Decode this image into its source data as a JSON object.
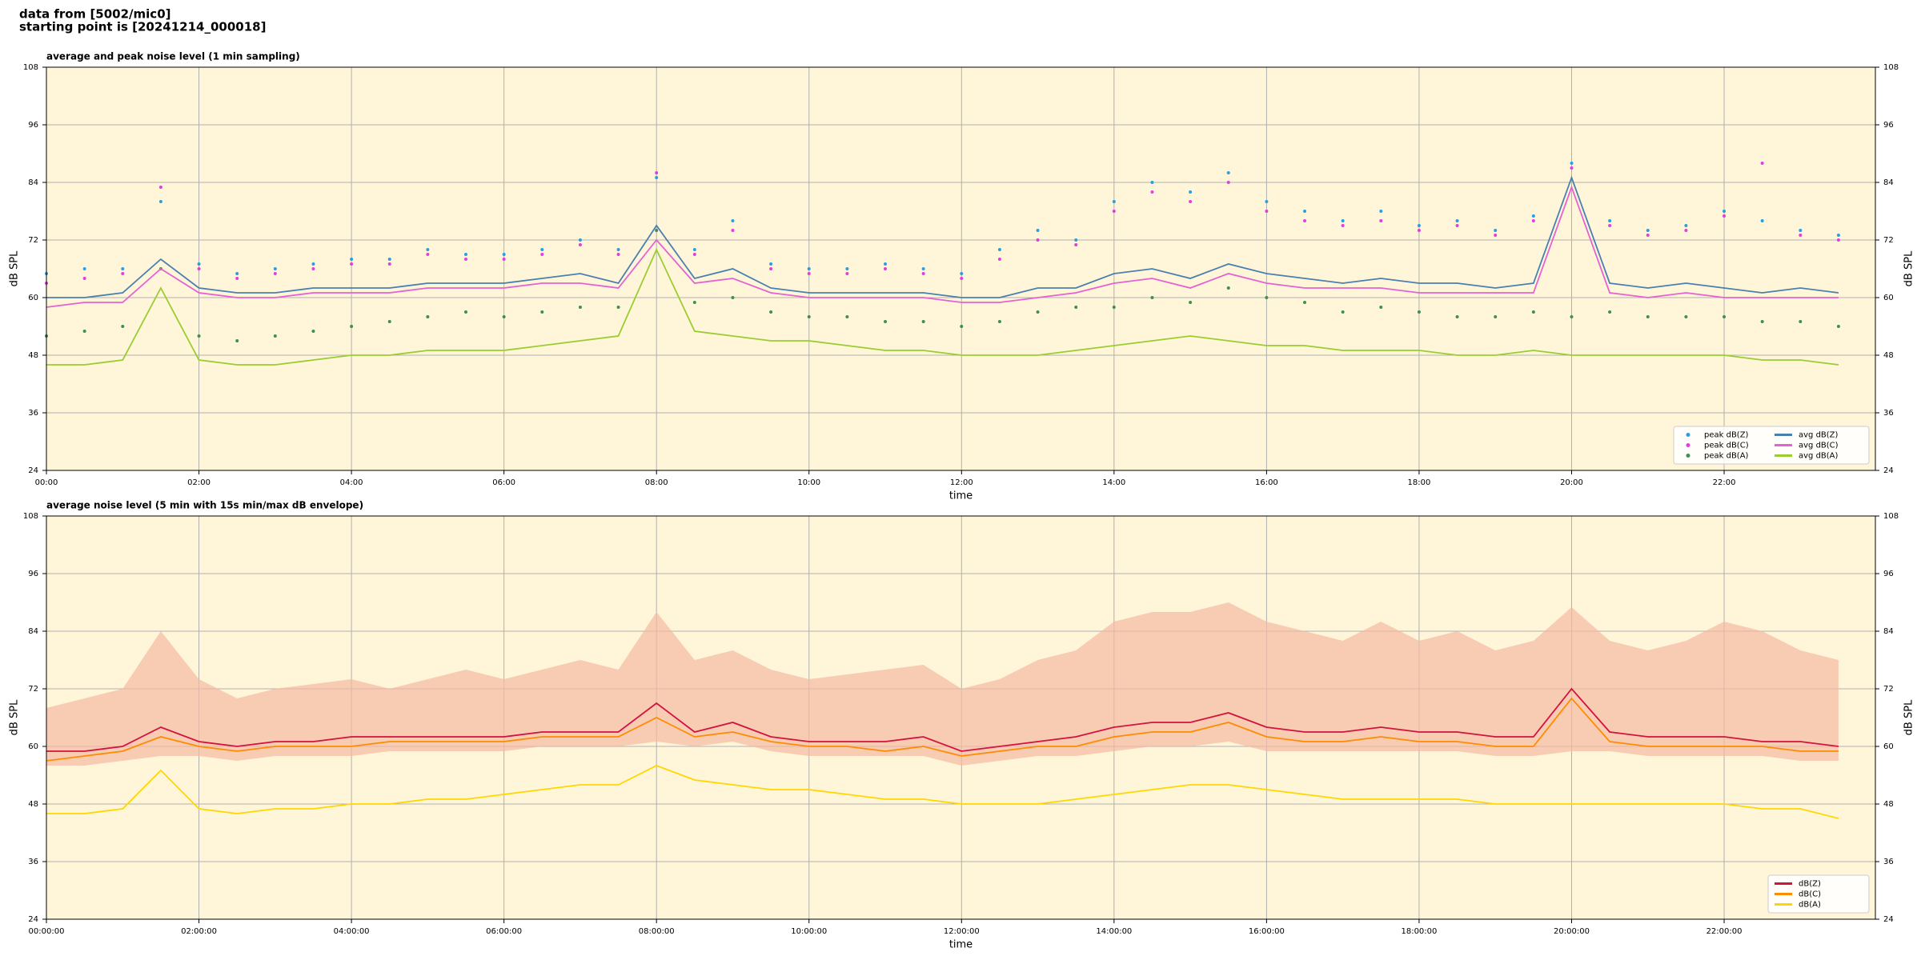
{
  "page_title": [
    "data from [5002/mic0]",
    "starting point is [20241214_000018]"
  ],
  "chart_data": [
    {
      "type": "line",
      "title": "average and peak noise level (1 min sampling)",
      "xlabel": "time",
      "ylabel": "dB SPL",
      "x": [
        "00:00",
        "00:30",
        "01:00",
        "01:30",
        "02:00",
        "02:30",
        "03:00",
        "03:30",
        "04:00",
        "04:30",
        "05:00",
        "05:30",
        "06:00",
        "06:30",
        "07:00",
        "07:30",
        "08:00",
        "08:30",
        "09:00",
        "09:30",
        "10:00",
        "10:30",
        "11:00",
        "11:30",
        "12:00",
        "12:30",
        "13:00",
        "13:30",
        "14:00",
        "14:30",
        "15:00",
        "15:30",
        "16:00",
        "16:30",
        "17:00",
        "17:30",
        "18:00",
        "18:30",
        "19:00",
        "19:30",
        "20:00",
        "20:30",
        "21:00",
        "21:30",
        "22:00",
        "22:30",
        "23:00",
        "23:30"
      ],
      "xlim": [
        "00:00",
        "23:59"
      ],
      "xticks": [
        "00:00",
        "02:00",
        "04:00",
        "06:00",
        "08:00",
        "10:00",
        "12:00",
        "14:00",
        "16:00",
        "18:00",
        "20:00",
        "22:00"
      ],
      "ylim": [
        24,
        108
      ],
      "yticks": [
        24,
        36,
        48,
        60,
        72,
        84,
        96,
        108
      ],
      "grid": true,
      "legend": "lower right",
      "legend_columns": 2,
      "background": "#fff6d9",
      "series": [
        {
          "name": "peak dB(Z)",
          "kind": "scatter",
          "color": "#2a9fe0",
          "values": [
            65,
            66,
            66,
            80,
            67,
            65,
            66,
            67,
            68,
            68,
            70,
            69,
            69,
            70,
            72,
            70,
            85,
            70,
            76,
            67,
            66,
            66,
            67,
            66,
            65,
            70,
            74,
            72,
            80,
            84,
            82,
            86,
            80,
            78,
            76,
            78,
            75,
            76,
            74,
            77,
            88,
            76,
            74,
            75,
            78,
            76,
            74,
            73
          ]
        },
        {
          "name": "peak dB(C)",
          "kind": "scatter",
          "color": "#e03ee0",
          "values": [
            63,
            64,
            65,
            83,
            66,
            64,
            65,
            66,
            67,
            67,
            69,
            68,
            68,
            69,
            71,
            69,
            86,
            69,
            74,
            66,
            65,
            65,
            66,
            65,
            64,
            68,
            72,
            71,
            78,
            82,
            80,
            84,
            78,
            76,
            75,
            76,
            74,
            75,
            73,
            76,
            87,
            75,
            73,
            74,
            77,
            88,
            73,
            72
          ]
        },
        {
          "name": "peak dB(A)",
          "kind": "scatter",
          "color": "#3f8f50",
          "values": [
            52,
            53,
            54,
            66,
            52,
            51,
            52,
            53,
            54,
            55,
            56,
            57,
            56,
            57,
            58,
            58,
            74,
            59,
            60,
            57,
            56,
            56,
            55,
            55,
            54,
            55,
            57,
            58,
            58,
            60,
            59,
            62,
            60,
            59,
            57,
            58,
            57,
            56,
            56,
            57,
            56,
            57,
            56,
            56,
            56,
            55,
            55,
            54
          ]
        },
        {
          "name": "avg dB(Z)",
          "kind": "line",
          "color": "#4a7fb0",
          "values": [
            60,
            60,
            61,
            68,
            62,
            61,
            61,
            62,
            62,
            62,
            63,
            63,
            63,
            64,
            65,
            63,
            75,
            64,
            66,
            62,
            61,
            61,
            61,
            61,
            60,
            60,
            62,
            62,
            65,
            66,
            64,
            67,
            65,
            64,
            63,
            64,
            63,
            63,
            62,
            63,
            85,
            63,
            62,
            63,
            62,
            61,
            62,
            61
          ]
        },
        {
          "name": "avg dB(C)",
          "kind": "line",
          "color": "#e462d2",
          "values": [
            58,
            59,
            59,
            66,
            61,
            60,
            60,
            61,
            61,
            61,
            62,
            62,
            62,
            63,
            63,
            62,
            72,
            63,
            64,
            61,
            60,
            60,
            60,
            60,
            59,
            59,
            60,
            61,
            63,
            64,
            62,
            65,
            63,
            62,
            62,
            62,
            61,
            61,
            61,
            61,
            83,
            61,
            60,
            61,
            60,
            60,
            60,
            60
          ]
        },
        {
          "name": "avg dB(A)",
          "kind": "line",
          "color": "#9acd32",
          "values": [
            46,
            46,
            47,
            62,
            47,
            46,
            46,
            47,
            48,
            48,
            49,
            49,
            49,
            50,
            51,
            52,
            70,
            53,
            52,
            51,
            51,
            50,
            49,
            49,
            48,
            48,
            48,
            49,
            50,
            51,
            52,
            51,
            50,
            50,
            49,
            49,
            49,
            48,
            48,
            49,
            48,
            48,
            48,
            48,
            48,
            47,
            47,
            46
          ]
        }
      ]
    },
    {
      "type": "line",
      "title": "average noise level (5 min with 15s min/max dB envelope)",
      "xlabel": "time",
      "ylabel": "dB SPL",
      "x": [
        "00:00",
        "00:30",
        "01:00",
        "01:30",
        "02:00",
        "02:30",
        "03:00",
        "03:30",
        "04:00",
        "04:30",
        "05:00",
        "05:30",
        "06:00",
        "06:30",
        "07:00",
        "07:30",
        "08:00",
        "08:30",
        "09:00",
        "09:30",
        "10:00",
        "10:30",
        "11:00",
        "11:30",
        "12:00",
        "12:30",
        "13:00",
        "13:30",
        "14:00",
        "14:30",
        "15:00",
        "15:30",
        "16:00",
        "16:30",
        "17:00",
        "17:30",
        "18:00",
        "18:30",
        "19:00",
        "19:30",
        "20:00",
        "20:30",
        "21:00",
        "21:30",
        "22:00",
        "22:30",
        "23:00",
        "23:30"
      ],
      "xlim": [
        "00:00",
        "23:59"
      ],
      "xticks": [
        {
          "value": "00:00",
          "label": "00:00:00"
        },
        {
          "value": "02:00",
          "label": "02:00:00"
        },
        {
          "value": "04:00",
          "label": "04:00:00"
        },
        {
          "value": "06:00",
          "label": "06:00:00"
        },
        {
          "value": "08:00",
          "label": "08:00:00"
        },
        {
          "value": "10:00",
          "label": "10:00:00"
        },
        {
          "value": "12:00",
          "label": "12:00:00"
        },
        {
          "value": "14:00",
          "label": "14:00:00"
        },
        {
          "value": "16:00",
          "label": "16:00:00"
        },
        {
          "value": "18:00",
          "label": "18:00:00"
        },
        {
          "value": "20:00",
          "label": "20:00:00"
        },
        {
          "value": "22:00",
          "label": "22:00:00"
        }
      ],
      "ylim": [
        24,
        108
      ],
      "yticks": [
        24,
        36,
        48,
        60,
        72,
        84,
        96,
        108
      ],
      "grid": true,
      "legend": "lower right",
      "legend_columns": 1,
      "background": "#fff6d9",
      "envelope": {
        "color": "#f5b9a2",
        "lower": [
          56,
          56,
          57,
          58,
          58,
          57,
          58,
          58,
          58,
          59,
          59,
          59,
          59,
          60,
          60,
          60,
          61,
          60,
          61,
          59,
          58,
          58,
          58,
          58,
          56,
          57,
          58,
          58,
          59,
          60,
          60,
          61,
          59,
          59,
          59,
          59,
          59,
          59,
          58,
          58,
          59,
          59,
          58,
          58,
          58,
          58,
          57,
          57
        ],
        "upper": [
          68,
          70,
          72,
          84,
          74,
          70,
          72,
          73,
          74,
          72,
          74,
          76,
          74,
          76,
          78,
          76,
          88,
          78,
          80,
          76,
          74,
          75,
          76,
          77,
          72,
          74,
          78,
          80,
          86,
          88,
          88,
          90,
          86,
          84,
          82,
          86,
          82,
          84,
          80,
          82,
          89,
          82,
          80,
          82,
          86,
          84,
          80,
          78
        ]
      },
      "series": [
        {
          "name": "dB(Z)",
          "kind": "line",
          "color": "#d3123e",
          "values": [
            59,
            59,
            60,
            64,
            61,
            60,
            61,
            61,
            62,
            62,
            62,
            62,
            62,
            63,
            63,
            63,
            69,
            63,
            65,
            62,
            61,
            61,
            61,
            62,
            59,
            60,
            61,
            62,
            64,
            65,
            65,
            67,
            64,
            63,
            63,
            64,
            63,
            63,
            62,
            62,
            72,
            63,
            62,
            62,
            62,
            61,
            61,
            60
          ]
        },
        {
          "name": "dB(C)",
          "kind": "line",
          "color": "#ff8c00",
          "values": [
            57,
            58,
            59,
            62,
            60,
            59,
            60,
            60,
            60,
            61,
            61,
            61,
            61,
            62,
            62,
            62,
            66,
            62,
            63,
            61,
            60,
            60,
            59,
            60,
            58,
            59,
            60,
            60,
            62,
            63,
            63,
            65,
            62,
            61,
            61,
            62,
            61,
            61,
            60,
            60,
            70,
            61,
            60,
            60,
            60,
            60,
            59,
            59
          ]
        },
        {
          "name": "dB(A)",
          "kind": "line",
          "color": "#ffd700",
          "values": [
            46,
            46,
            47,
            55,
            47,
            46,
            47,
            47,
            48,
            48,
            49,
            49,
            50,
            51,
            52,
            52,
            56,
            53,
            52,
            51,
            51,
            50,
            49,
            49,
            48,
            48,
            48,
            49,
            50,
            51,
            52,
            52,
            51,
            50,
            49,
            49,
            49,
            49,
            48,
            48,
            48,
            48,
            48,
            48,
            48,
            47,
            47,
            45
          ]
        }
      ]
    }
  ]
}
